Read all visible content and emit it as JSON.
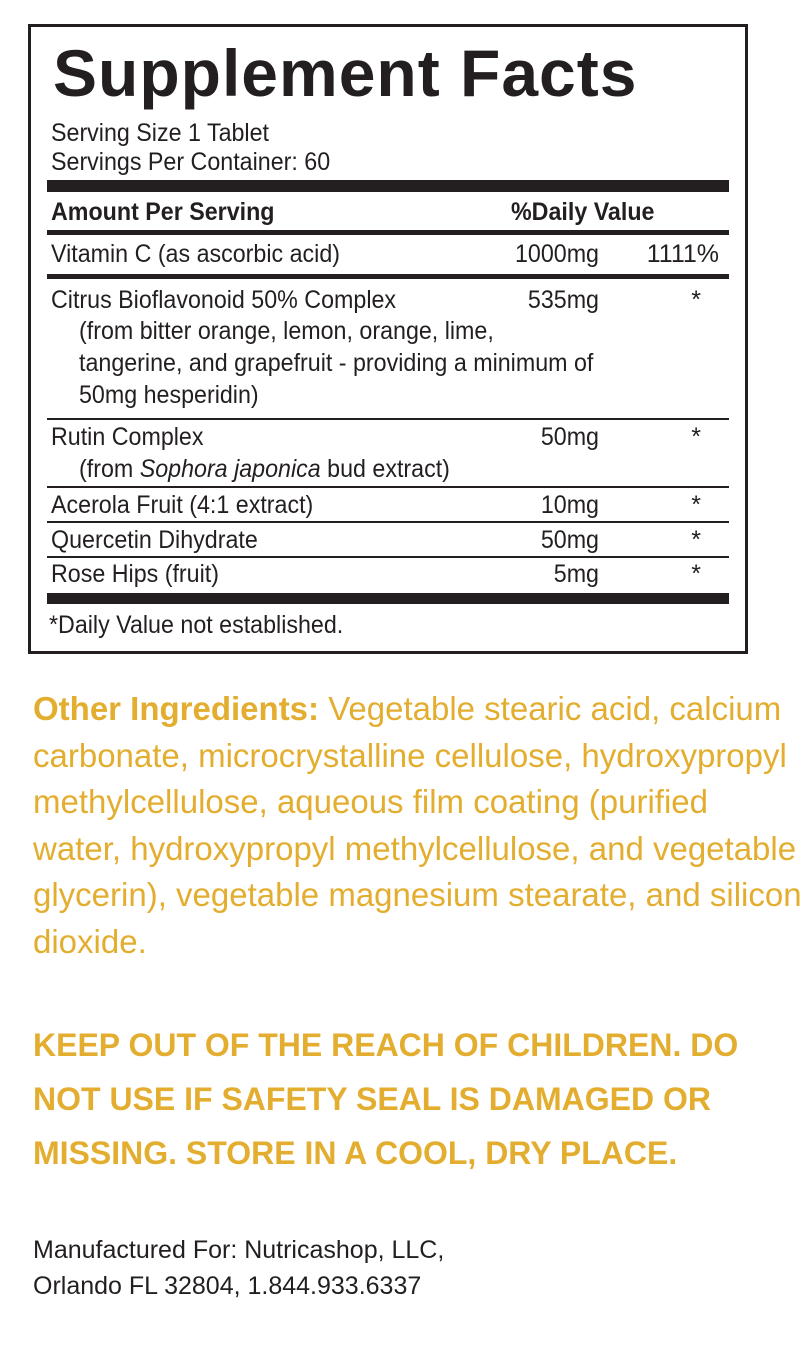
{
  "title": "Supplement Facts",
  "serving_size": "Serving Size 1 Tablet",
  "servings_per_container": "Servings Per Container: 60",
  "header": {
    "amount": "Amount Per Serving",
    "dv": "%Daily Value"
  },
  "rows": [
    {
      "name": "Vitamin C (as ascorbic acid)",
      "amount": "1000mg",
      "dv": "1111%"
    },
    {
      "name": "Citrus Bioflavonoid 50% Complex",
      "amount": "535mg",
      "dv": "*",
      "sub": [
        "(from bitter orange, lemon, orange, lime,",
        "tangerine, and grapefruit - providing a minimum of",
        "50mg hesperidin)"
      ]
    },
    {
      "name": "Rutin Complex",
      "amount": "50mg",
      "dv": "*",
      "sub_pre": "(from ",
      "sub_italic": "Sophora japonica",
      "sub_post": " bud extract)"
    },
    {
      "name": "Acerola Fruit (4:1 extract)",
      "amount": "10mg",
      "dv": "*"
    },
    {
      "name": "Quercetin Dihydrate",
      "amount": "50mg",
      "dv": "*"
    },
    {
      "name": "Rose Hips (fruit)",
      "amount": "5mg",
      "dv": "*"
    }
  ],
  "footnote": "*Daily Value not established.",
  "other_ingredients": {
    "label": "Other Ingredients:",
    "text": " Vegetable stearic acid, calcium carbonate, microcrystalline cellulose, hydroxypropyl methylcellulose, aqueous film coating (purified water, hydroxypropyl methylcellulose, and vegetable glycerin), vegetable magnesium stearate, and silicon dioxide."
  },
  "warning": "KEEP OUT OF THE REACH OF CHILDREN.  DO NOT USE IF SAFETY SEAL IS DAMAGED OR MISSING. STORE IN A COOL, DRY PLACE.",
  "manufacturer": {
    "line1": "Manufactured  For:  Nutricashop,  LLC,",
    "line2": "Orlando FL  32804, 1.844.933.6337"
  },
  "colors": {
    "text": "#231f20",
    "accent": "#e3ae30"
  }
}
